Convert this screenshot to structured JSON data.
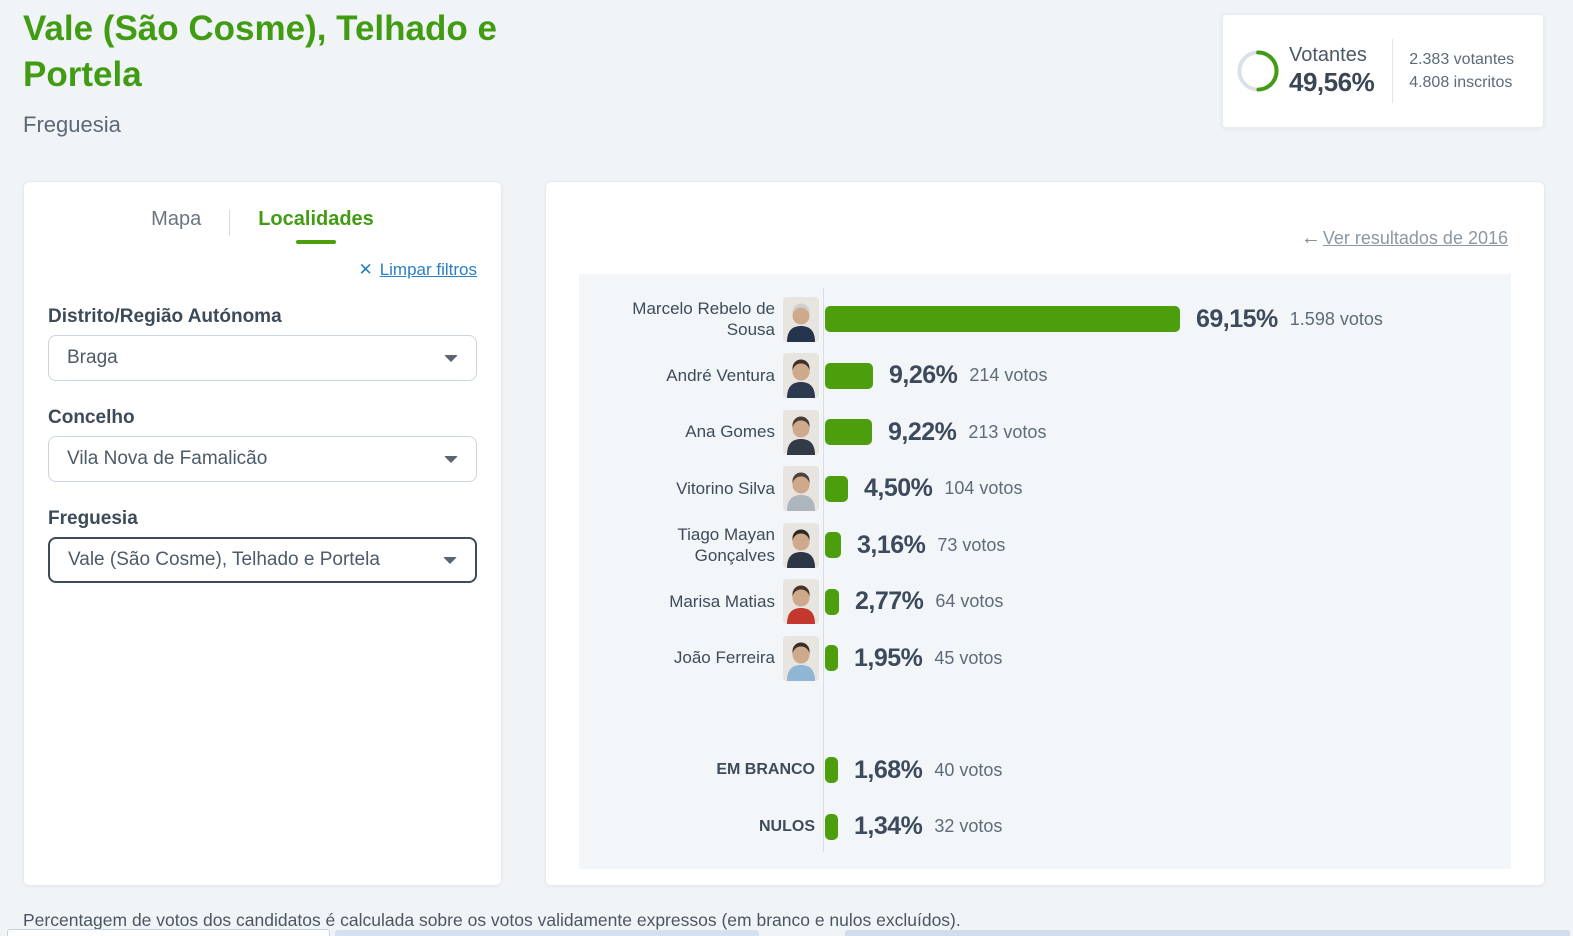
{
  "page": {
    "title": "Vale (São Cosme), Telhado e Portela",
    "subtitle": "Freguesia",
    "footnote": "Percentagem de votos dos candidatos é calculada sobre os votos validamente expressos (em branco e nulos excluídos)."
  },
  "turnout": {
    "label": "Votantes",
    "percent": "49,56%",
    "percent_value": 49.56,
    "voters": "2.383 votantes",
    "registered": "4.808 inscritos"
  },
  "filters": {
    "tabs": [
      {
        "label": "Mapa",
        "active": false
      },
      {
        "label": "Localidades",
        "active": true
      }
    ],
    "clear_label": "Limpar filtros",
    "fields": [
      {
        "label": "Distrito/Região Autónoma",
        "value": "Braga"
      },
      {
        "label": "Concelho",
        "value": "Vila Nova de Famalicão"
      },
      {
        "label": "Freguesia",
        "value": "Vale (São Cosme), Telhado e Portela"
      }
    ]
  },
  "results": {
    "back_link": "Ver resultados de 2016"
  },
  "icons": {
    "clear": "✕",
    "back_arrow": "←"
  },
  "chart_data": {
    "type": "bar",
    "orientation": "horizontal",
    "title": "",
    "xlabel": "",
    "ylabel": "",
    "xlim": [
      0,
      100
    ],
    "grid": false,
    "categories": [
      "Marcelo Rebelo de Sousa",
      "André Ventura",
      "Ana Gomes",
      "Vitorino Silva",
      "Tiago Mayan Gonçalves",
      "Marisa Matias",
      "João Ferreira",
      "EM BRANCO",
      "NULOS"
    ],
    "values": [
      69.15,
      9.26,
      9.22,
      4.5,
      3.16,
      2.77,
      1.95,
      1.68,
      1.34
    ],
    "votes": [
      1598,
      214,
      213,
      104,
      73,
      64,
      45,
      40,
      32
    ],
    "rows": [
      {
        "name": "Marcelo Rebelo de Sousa",
        "percent": "69,15%",
        "votes": "1.598 votos",
        "value": 69.15,
        "avatar": true,
        "special": false,
        "suit": "#24344d",
        "hair": "#cfcfcf"
      },
      {
        "name": "André Ventura",
        "percent": "9,26%",
        "votes": "214 votos",
        "value": 9.26,
        "avatar": true,
        "special": false,
        "suit": "#2b3a50",
        "hair": "#3a3228"
      },
      {
        "name": "Ana Gomes",
        "percent": "9,22%",
        "votes": "213 votos",
        "value": 9.22,
        "avatar": true,
        "special": false,
        "suit": "#323a46",
        "hair": "#4a3b33"
      },
      {
        "name": "Vitorino Silva",
        "percent": "4,50%",
        "votes": "104 votos",
        "value": 4.5,
        "avatar": true,
        "special": false,
        "suit": "#aeb6bd",
        "hair": "#4b423a"
      },
      {
        "name": "Tiago Mayan Gonçalves",
        "percent": "3,16%",
        "votes": "73 votos",
        "value": 3.16,
        "avatar": true,
        "special": false,
        "suit": "#2c3647",
        "hair": "#2e2822"
      },
      {
        "name": "Marisa Matias",
        "percent": "2,77%",
        "votes": "64 votos",
        "value": 2.77,
        "avatar": true,
        "special": false,
        "suit": "#c4372f",
        "hair": "#4a3228"
      },
      {
        "name": "João Ferreira",
        "percent": "1,95%",
        "votes": "45 votos",
        "value": 1.95,
        "avatar": true,
        "special": false,
        "suit": "#8fb6d4",
        "hair": "#3a2f26"
      },
      {
        "name": "EM BRANCO",
        "percent": "1,68%",
        "votes": "40 votos",
        "value": 1.68,
        "avatar": false,
        "special": true,
        "suit": "",
        "hair": ""
      },
      {
        "name": "NULOS",
        "percent": "1,34%",
        "votes": "32 votos",
        "value": 1.34,
        "avatar": false,
        "special": true,
        "suit": "",
        "hair": ""
      }
    ]
  },
  "colors": {
    "accent_green": "#419c13",
    "bar_green": "#4d9e0c",
    "link_blue": "#2980c4",
    "muted_link": "#8b97a4",
    "dark_text": "#3d4a5c",
    "page_bg": "#f0f4f7",
    "chart_bg": "#f3f6f9",
    "donut_track": "#dbe1e6"
  }
}
